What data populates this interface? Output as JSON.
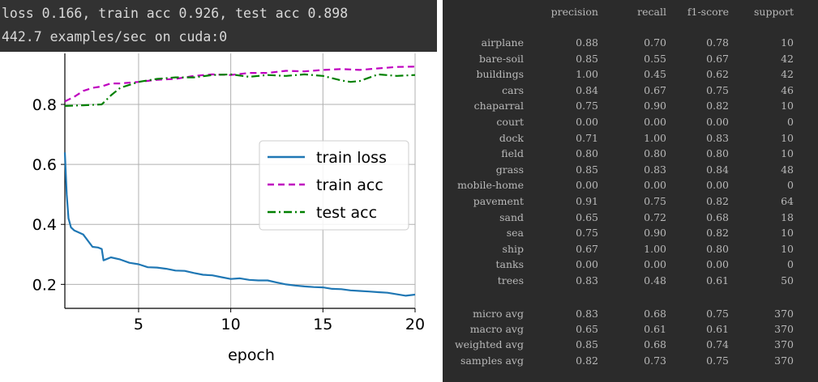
{
  "console": {
    "line1": "loss 0.166, train acc 0.926, test acc 0.898",
    "line2": "442.7 examples/sec on cuda:0"
  },
  "chart_data": {
    "type": "line",
    "xlabel": "epoch",
    "ylabel": "",
    "title": "",
    "xlim": [
      1,
      20
    ],
    "ylim": [
      0.12,
      0.97
    ],
    "xticks": [
      5,
      10,
      15,
      20
    ],
    "yticks": [
      0.2,
      0.4,
      0.6,
      0.8
    ],
    "grid": true,
    "legend_position": "center-right",
    "series": [
      {
        "name": "train loss",
        "color": "#1f77b4",
        "style": "solid",
        "x": [
          1,
          1.1,
          1.2,
          1.33,
          1.5,
          2,
          2.5,
          2.8,
          3.0,
          3.1,
          3.5,
          4,
          4.5,
          5,
          5.5,
          6,
          6.5,
          7,
          7.5,
          8,
          8.5,
          9,
          9.5,
          10,
          10.5,
          11,
          11.5,
          12,
          12.5,
          13,
          13.5,
          14,
          14.5,
          15,
          15.5,
          16,
          16.5,
          17,
          17.5,
          18,
          18.5,
          19,
          19.5,
          20
        ],
        "y": [
          0.64,
          0.5,
          0.42,
          0.39,
          0.38,
          0.366,
          0.325,
          0.323,
          0.318,
          0.28,
          0.29,
          0.283,
          0.272,
          0.267,
          0.257,
          0.256,
          0.252,
          0.246,
          0.245,
          0.238,
          0.232,
          0.23,
          0.224,
          0.218,
          0.22,
          0.215,
          0.213,
          0.213,
          0.206,
          0.2,
          0.196,
          0.193,
          0.191,
          0.19,
          0.185,
          0.184,
          0.18,
          0.178,
          0.176,
          0.174,
          0.172,
          0.167,
          0.162,
          0.166
        ]
      },
      {
        "name": "train acc",
        "color": "#bf00bf",
        "style": "dashed",
        "x": [
          1,
          1.5,
          2,
          2.5,
          3,
          3.5,
          4,
          5,
          6,
          7,
          8,
          9,
          10,
          11,
          12,
          13,
          14,
          15,
          16,
          17,
          18,
          19,
          20
        ],
        "y": [
          0.81,
          0.825,
          0.845,
          0.855,
          0.86,
          0.87,
          0.87,
          0.875,
          0.882,
          0.885,
          0.895,
          0.9,
          0.898,
          0.905,
          0.905,
          0.912,
          0.91,
          0.915,
          0.918,
          0.915,
          0.92,
          0.925,
          0.926
        ]
      },
      {
        "name": "test acc",
        "color": "#008000",
        "style": "dashdot",
        "x": [
          1,
          2,
          3,
          3.5,
          4,
          5,
          6,
          7,
          8,
          9,
          10,
          11,
          12,
          13,
          14,
          15,
          16,
          16.5,
          17,
          18,
          19,
          20
        ],
        "y": [
          0.795,
          0.797,
          0.8,
          0.83,
          0.855,
          0.875,
          0.885,
          0.89,
          0.89,
          0.898,
          0.9,
          0.892,
          0.898,
          0.895,
          0.9,
          0.895,
          0.88,
          0.875,
          0.878,
          0.9,
          0.895,
          0.898
        ]
      }
    ]
  },
  "report": {
    "headers": [
      "precision",
      "recall",
      "f1-score",
      "support"
    ],
    "rows": [
      {
        "label": "airplane",
        "values": [
          "0.88",
          "0.70",
          "0.78",
          "10"
        ]
      },
      {
        "label": "bare-soil",
        "values": [
          "0.85",
          "0.55",
          "0.67",
          "42"
        ]
      },
      {
        "label": "buildings",
        "values": [
          "1.00",
          "0.45",
          "0.62",
          "42"
        ]
      },
      {
        "label": "cars",
        "values": [
          "0.84",
          "0.67",
          "0.75",
          "46"
        ]
      },
      {
        "label": "chaparral",
        "values": [
          "0.75",
          "0.90",
          "0.82",
          "10"
        ]
      },
      {
        "label": "court",
        "values": [
          "0.00",
          "0.00",
          "0.00",
          "0"
        ]
      },
      {
        "label": "dock",
        "values": [
          "0.71",
          "1.00",
          "0.83",
          "10"
        ]
      },
      {
        "label": "field",
        "values": [
          "0.80",
          "0.80",
          "0.80",
          "10"
        ]
      },
      {
        "label": "grass",
        "values": [
          "0.85",
          "0.83",
          "0.84",
          "48"
        ]
      },
      {
        "label": "mobile-home",
        "values": [
          "0.00",
          "0.00",
          "0.00",
          "0"
        ]
      },
      {
        "label": "pavement",
        "values": [
          "0.91",
          "0.75",
          "0.82",
          "64"
        ]
      },
      {
        "label": "sand",
        "values": [
          "0.65",
          "0.72",
          "0.68",
          "18"
        ]
      },
      {
        "label": "sea",
        "values": [
          "0.75",
          "0.90",
          "0.82",
          "10"
        ]
      },
      {
        "label": "ship",
        "values": [
          "0.67",
          "1.00",
          "0.80",
          "10"
        ]
      },
      {
        "label": "tanks",
        "values": [
          "0.00",
          "0.00",
          "0.00",
          "0"
        ]
      },
      {
        "label": "trees",
        "values": [
          "0.83",
          "0.48",
          "0.61",
          "50"
        ]
      }
    ],
    "summary": [
      {
        "label": "micro avg",
        "values": [
          "0.83",
          "0.68",
          "0.75",
          "370"
        ]
      },
      {
        "label": "macro avg",
        "values": [
          "0.65",
          "0.61",
          "0.61",
          "370"
        ]
      },
      {
        "label": "weighted avg",
        "values": [
          "0.85",
          "0.68",
          "0.74",
          "370"
        ]
      },
      {
        "label": "samples avg",
        "values": [
          "0.82",
          "0.73",
          "0.75",
          "370"
        ]
      }
    ]
  }
}
